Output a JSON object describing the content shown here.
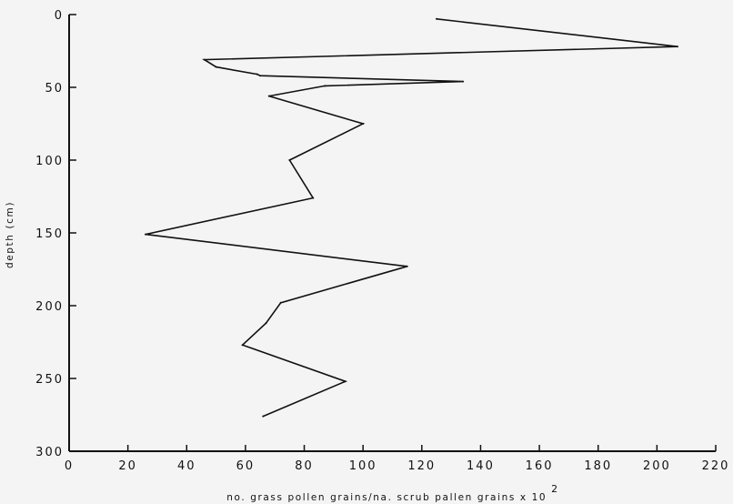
{
  "chart_data": {
    "type": "line",
    "title": "",
    "xlabel": "no. grass pollen grains/na. scrub pallen grains  x 10",
    "xlabel_superscript": "2",
    "ylabel": "depth (cm)",
    "xlim": [
      0,
      220
    ],
    "ylim": [
      300,
      0
    ],
    "y_inverted": true,
    "grid": false,
    "legend": "none",
    "x_ticks": [
      0,
      20,
      40,
      60,
      80,
      100,
      120,
      140,
      160,
      180,
      200,
      220
    ],
    "x_tick_labels": [
      "0",
      "20",
      "40",
      "60",
      "80",
      "100",
      "120",
      "140",
      "160",
      "180",
      "200",
      "220"
    ],
    "y_ticks": [
      0,
      50,
      100,
      150,
      200,
      250,
      300
    ],
    "y_tick_labels": [
      "0",
      "50",
      "100",
      "150",
      "200",
      "250",
      "300"
    ],
    "series": [
      {
        "x": [
          125,
          207,
          46,
          50,
          64,
          65,
          134,
          87,
          68,
          100,
          75,
          83,
          26,
          115,
          72,
          67,
          59,
          94,
          66
        ],
        "y": [
          3,
          22,
          31,
          36,
          41,
          42,
          46,
          49,
          56,
          75,
          100,
          126,
          151,
          173,
          198,
          212,
          227,
          252,
          276
        ],
        "color": "#111111"
      }
    ]
  }
}
